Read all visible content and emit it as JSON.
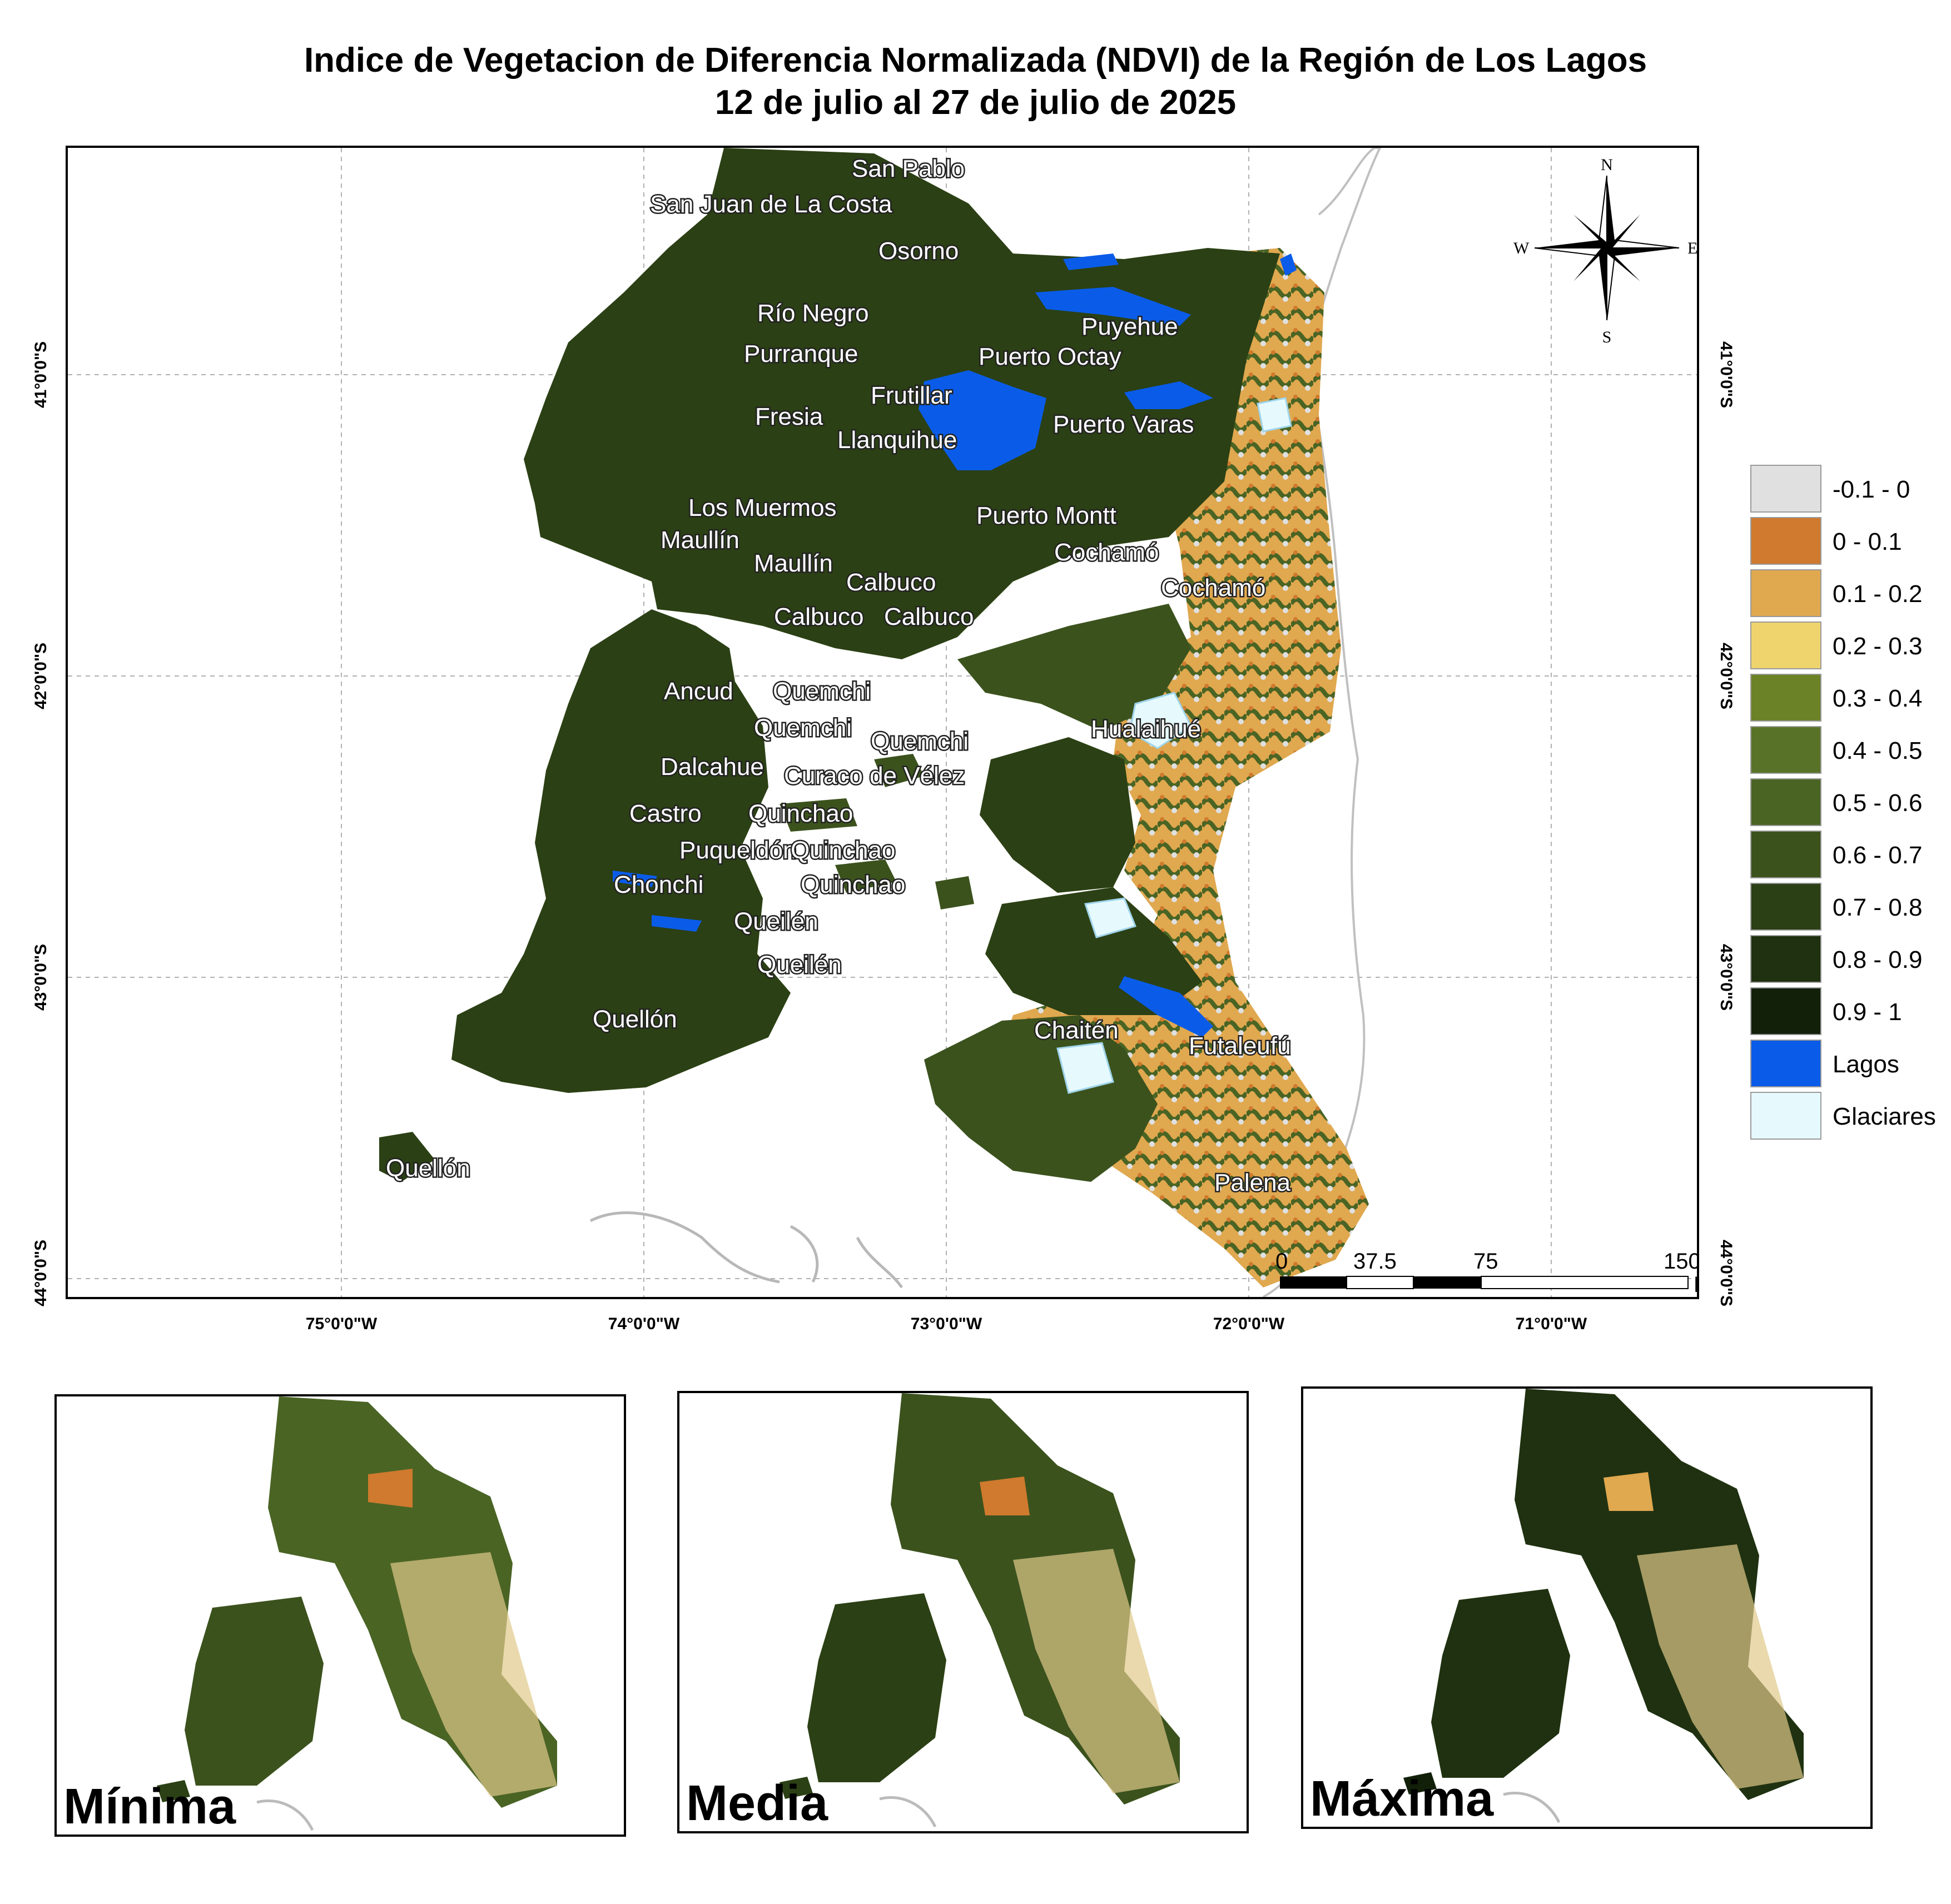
{
  "title": {
    "line1": "Indice de Vegetacion de Diferencia Normalizada (NDVI) de la Región de Los Lagos",
    "line2": "12 de julio al 27 de julio de 2025"
  },
  "axes": {
    "longitude": [
      "75°0'0\"W",
      "74°0'0\"W",
      "73°0'0\"W",
      "72°0'0\"W",
      "71°0'0\"W"
    ],
    "latitude": [
      "41°0'0\"S",
      "42°0'0\"S",
      "43°0'0\"S",
      "44°0'0\"S"
    ]
  },
  "places": [
    "San Pablo",
    "San Juan de La Costa",
    "Osorno",
    "Puyehue",
    "Río Negro",
    "Purranque",
    "Puerto Octay",
    "Frutillar",
    "Fresia",
    "Llanquihue",
    "Puerto Varas",
    "Los Muermos",
    "Puerto Montt",
    "Maullín",
    "Maullín",
    "Cochamó",
    "Calbuco",
    "Cochamó",
    "Calbuco",
    "Calbuco",
    "Ancud",
    "Quemchi",
    "Quemchi",
    "Quemchi",
    "Hualaihué",
    "Dalcahue",
    "Curaco de Vélez",
    "Castro",
    "Quinchao",
    "Puqueldón",
    "Quinchao",
    "Chonchi",
    "Quinchao",
    "Queilén",
    "Queilén",
    "Quellón",
    "Chaitén",
    "Futaleufú",
    "Quellón",
    "Palena"
  ],
  "compass": {
    "n": "N",
    "s": "S",
    "e": "E",
    "w": "W"
  },
  "scale_bar": {
    "ticks": [
      "0",
      "37.5",
      "75",
      "150"
    ],
    "unit": "Km"
  },
  "legend": [
    {
      "label": "-0.1 - 0",
      "color": "#e0e0e0"
    },
    {
      "label": "0 - 0.1",
      "color": "#cf7a2e"
    },
    {
      "label": "0.1 - 0.2",
      "color": "#e0a84f"
    },
    {
      "label": "0.2 - 0.3",
      "color": "#efd46e"
    },
    {
      "label": "0.3 - 0.4",
      "color": "#6b8227"
    },
    {
      "label": "0.4 - 0.5",
      "color": "#587327"
    },
    {
      "label": "0.5 - 0.6",
      "color": "#4a6424"
    },
    {
      "label": "0.6 - 0.7",
      "color": "#3b521d"
    },
    {
      "label": "0.7 - 0.8",
      "color": "#2b4014"
    },
    {
      "label": "0.8 - 0.9",
      "color": "#1f3110"
    },
    {
      "label": "0.9 - 1",
      "color": "#12200a"
    },
    {
      "label": "Lagos",
      "color": "#0a5ce8"
    },
    {
      "label": "Glaciares",
      "color": "#e6fafe"
    }
  ],
  "insets": [
    {
      "label": "Mínima"
    },
    {
      "label": "Media"
    },
    {
      "label": "Máxima"
    }
  ]
}
